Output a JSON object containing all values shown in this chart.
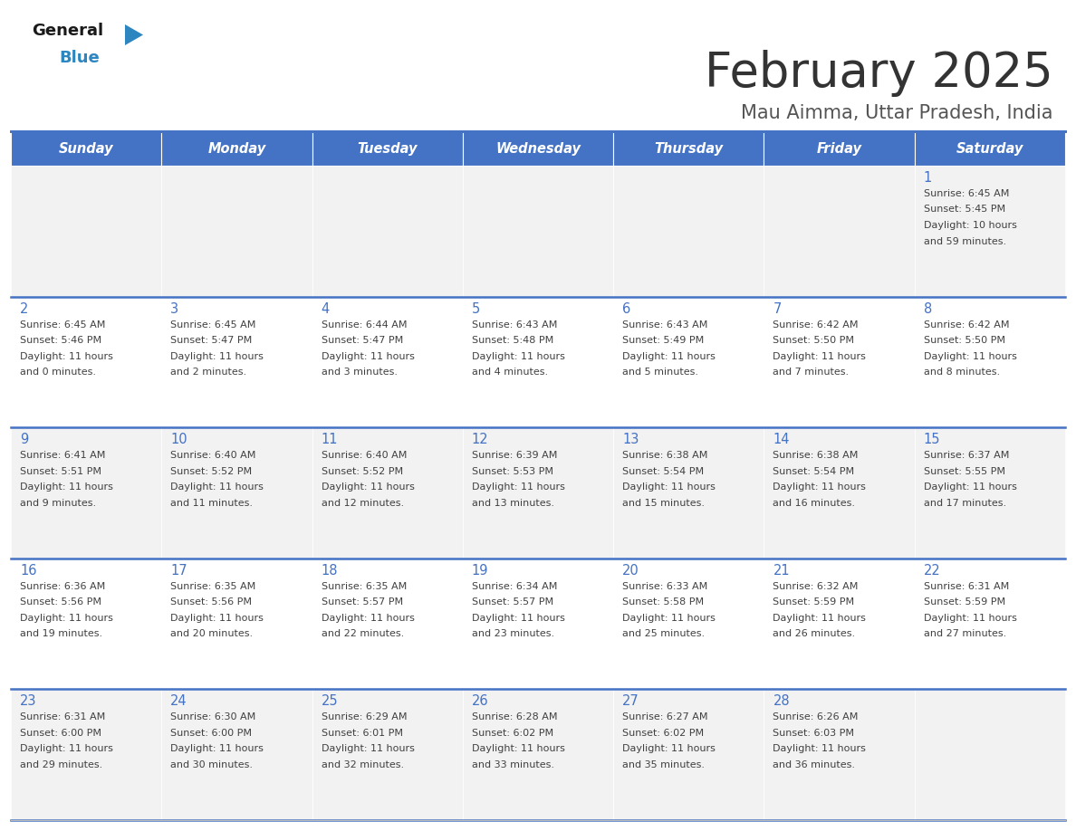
{
  "title": "February 2025",
  "subtitle": "Mau Aimma, Uttar Pradesh, India",
  "header_bg": "#4472C4",
  "header_text_color": "#FFFFFF",
  "day_names": [
    "Sunday",
    "Monday",
    "Tuesday",
    "Wednesday",
    "Thursday",
    "Friday",
    "Saturday"
  ],
  "cell_bg_light": "#F2F2F2",
  "cell_bg_white": "#FFFFFF",
  "divider_color": "#4472C4",
  "text_color": "#404040",
  "number_color": "#4472C4",
  "weeks": [
    [
      {
        "day": null,
        "sunrise": null,
        "sunset": null,
        "daylight": null
      },
      {
        "day": null,
        "sunrise": null,
        "sunset": null,
        "daylight": null
      },
      {
        "day": null,
        "sunrise": null,
        "sunset": null,
        "daylight": null
      },
      {
        "day": null,
        "sunrise": null,
        "sunset": null,
        "daylight": null
      },
      {
        "day": null,
        "sunrise": null,
        "sunset": null,
        "daylight": null
      },
      {
        "day": null,
        "sunrise": null,
        "sunset": null,
        "daylight": null
      },
      {
        "day": 1,
        "sunrise": "6:45 AM",
        "sunset": "5:45 PM",
        "daylight": "10 hours\nand 59 minutes."
      }
    ],
    [
      {
        "day": 2,
        "sunrise": "6:45 AM",
        "sunset": "5:46 PM",
        "daylight": "11 hours\nand 0 minutes."
      },
      {
        "day": 3,
        "sunrise": "6:45 AM",
        "sunset": "5:47 PM",
        "daylight": "11 hours\nand 2 minutes."
      },
      {
        "day": 4,
        "sunrise": "6:44 AM",
        "sunset": "5:47 PM",
        "daylight": "11 hours\nand 3 minutes."
      },
      {
        "day": 5,
        "sunrise": "6:43 AM",
        "sunset": "5:48 PM",
        "daylight": "11 hours\nand 4 minutes."
      },
      {
        "day": 6,
        "sunrise": "6:43 AM",
        "sunset": "5:49 PM",
        "daylight": "11 hours\nand 5 minutes."
      },
      {
        "day": 7,
        "sunrise": "6:42 AM",
        "sunset": "5:50 PM",
        "daylight": "11 hours\nand 7 minutes."
      },
      {
        "day": 8,
        "sunrise": "6:42 AM",
        "sunset": "5:50 PM",
        "daylight": "11 hours\nand 8 minutes."
      }
    ],
    [
      {
        "day": 9,
        "sunrise": "6:41 AM",
        "sunset": "5:51 PM",
        "daylight": "11 hours\nand 9 minutes."
      },
      {
        "day": 10,
        "sunrise": "6:40 AM",
        "sunset": "5:52 PM",
        "daylight": "11 hours\nand 11 minutes."
      },
      {
        "day": 11,
        "sunrise": "6:40 AM",
        "sunset": "5:52 PM",
        "daylight": "11 hours\nand 12 minutes."
      },
      {
        "day": 12,
        "sunrise": "6:39 AM",
        "sunset": "5:53 PM",
        "daylight": "11 hours\nand 13 minutes."
      },
      {
        "day": 13,
        "sunrise": "6:38 AM",
        "sunset": "5:54 PM",
        "daylight": "11 hours\nand 15 minutes."
      },
      {
        "day": 14,
        "sunrise": "6:38 AM",
        "sunset": "5:54 PM",
        "daylight": "11 hours\nand 16 minutes."
      },
      {
        "day": 15,
        "sunrise": "6:37 AM",
        "sunset": "5:55 PM",
        "daylight": "11 hours\nand 17 minutes."
      }
    ],
    [
      {
        "day": 16,
        "sunrise": "6:36 AM",
        "sunset": "5:56 PM",
        "daylight": "11 hours\nand 19 minutes."
      },
      {
        "day": 17,
        "sunrise": "6:35 AM",
        "sunset": "5:56 PM",
        "daylight": "11 hours\nand 20 minutes."
      },
      {
        "day": 18,
        "sunrise": "6:35 AM",
        "sunset": "5:57 PM",
        "daylight": "11 hours\nand 22 minutes."
      },
      {
        "day": 19,
        "sunrise": "6:34 AM",
        "sunset": "5:57 PM",
        "daylight": "11 hours\nand 23 minutes."
      },
      {
        "day": 20,
        "sunrise": "6:33 AM",
        "sunset": "5:58 PM",
        "daylight": "11 hours\nand 25 minutes."
      },
      {
        "day": 21,
        "sunrise": "6:32 AM",
        "sunset": "5:59 PM",
        "daylight": "11 hours\nand 26 minutes."
      },
      {
        "day": 22,
        "sunrise": "6:31 AM",
        "sunset": "5:59 PM",
        "daylight": "11 hours\nand 27 minutes."
      }
    ],
    [
      {
        "day": 23,
        "sunrise": "6:31 AM",
        "sunset": "6:00 PM",
        "daylight": "11 hours\nand 29 minutes."
      },
      {
        "day": 24,
        "sunrise": "6:30 AM",
        "sunset": "6:00 PM",
        "daylight": "11 hours\nand 30 minutes."
      },
      {
        "day": 25,
        "sunrise": "6:29 AM",
        "sunset": "6:01 PM",
        "daylight": "11 hours\nand 32 minutes."
      },
      {
        "day": 26,
        "sunrise": "6:28 AM",
        "sunset": "6:02 PM",
        "daylight": "11 hours\nand 33 minutes."
      },
      {
        "day": 27,
        "sunrise": "6:27 AM",
        "sunset": "6:02 PM",
        "daylight": "11 hours\nand 35 minutes."
      },
      {
        "day": 28,
        "sunrise": "6:26 AM",
        "sunset": "6:03 PM",
        "daylight": "11 hours\nand 36 minutes."
      },
      {
        "day": null,
        "sunrise": null,
        "sunset": null,
        "daylight": null
      }
    ]
  ]
}
